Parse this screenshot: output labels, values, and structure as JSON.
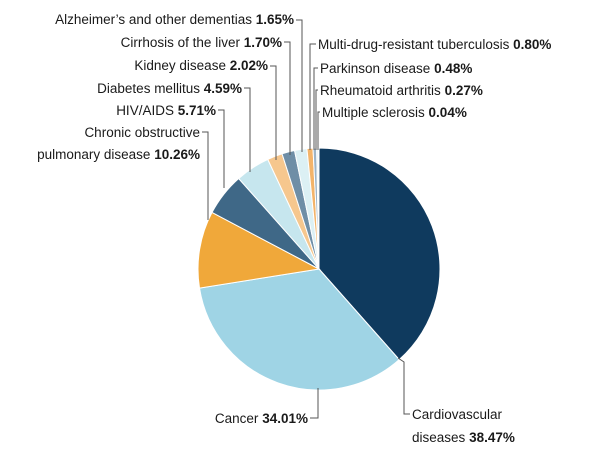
{
  "chart_data": {
    "type": "pie",
    "slices": [
      {
        "label": "Cardiovascular diseases",
        "value_text": "38.47%",
        "value": 38.47,
        "color": "#0f3a5e"
      },
      {
        "label": "Cancer",
        "value_text": "34.01%",
        "value": 34.01,
        "color": "#9fd4e5"
      },
      {
        "label": "Chronic obstructive pulmonary disease",
        "value_text": "10.26%",
        "value": 10.26,
        "color": "#f0a83a"
      },
      {
        "label": "HIV/AIDS",
        "value_text": "5.71%",
        "value": 5.71,
        "color": "#3f6887"
      },
      {
        "label": "Diabetes mellitus",
        "value_text": "4.59%",
        "value": 4.59,
        "color": "#c6e6ee"
      },
      {
        "label": "Kidney disease",
        "value_text": "2.02%",
        "value": 2.02,
        "color": "#f6c78e"
      },
      {
        "label": "Cirrhosis of the liver",
        "value_text": "1.70%",
        "value": 1.7,
        "color": "#6f8ea6"
      },
      {
        "label": "Alzheimer's and other dementias",
        "value_text": "1.65%",
        "value": 1.65,
        "color": "#dcf0f4"
      },
      {
        "label": "Multi-drug-resistant tuberculosis",
        "value_text": "0.80%",
        "value": 0.8,
        "color": "#f3b46a"
      },
      {
        "label": "Parkinson disease",
        "value_text": "0.48%",
        "value": 0.48,
        "color": "#9db4c6"
      },
      {
        "label": "Rheumatoid arthritis",
        "value_text": "0.27%",
        "value": 0.27,
        "color": "#e9f6f9"
      },
      {
        "label": "Multiple sclerosis",
        "value_text": "0.04%",
        "value": 0.04,
        "color": "#f8d2a5"
      }
    ],
    "labels": {
      "cardio_line1": "Cardiovascular",
      "cardio_line2": "diseases",
      "cancer": "Cancer",
      "copd_line1": "Chronic obstructive",
      "copd_line2": "pulmonary disease",
      "hiv": "HIV/AIDS",
      "diabetes": "Diabetes mellitus",
      "kidney": "Kidney disease",
      "cirrhosis": "Cirrhosis of the liver",
      "alzheimer": "Alzheimer’s and other dementias",
      "tb": "Multi-drug-resistant tuberculosis",
      "parkinson": "Parkinson disease",
      "ra": "Rheumatoid arthritis",
      "ms": "Multiple sclerosis"
    }
  }
}
